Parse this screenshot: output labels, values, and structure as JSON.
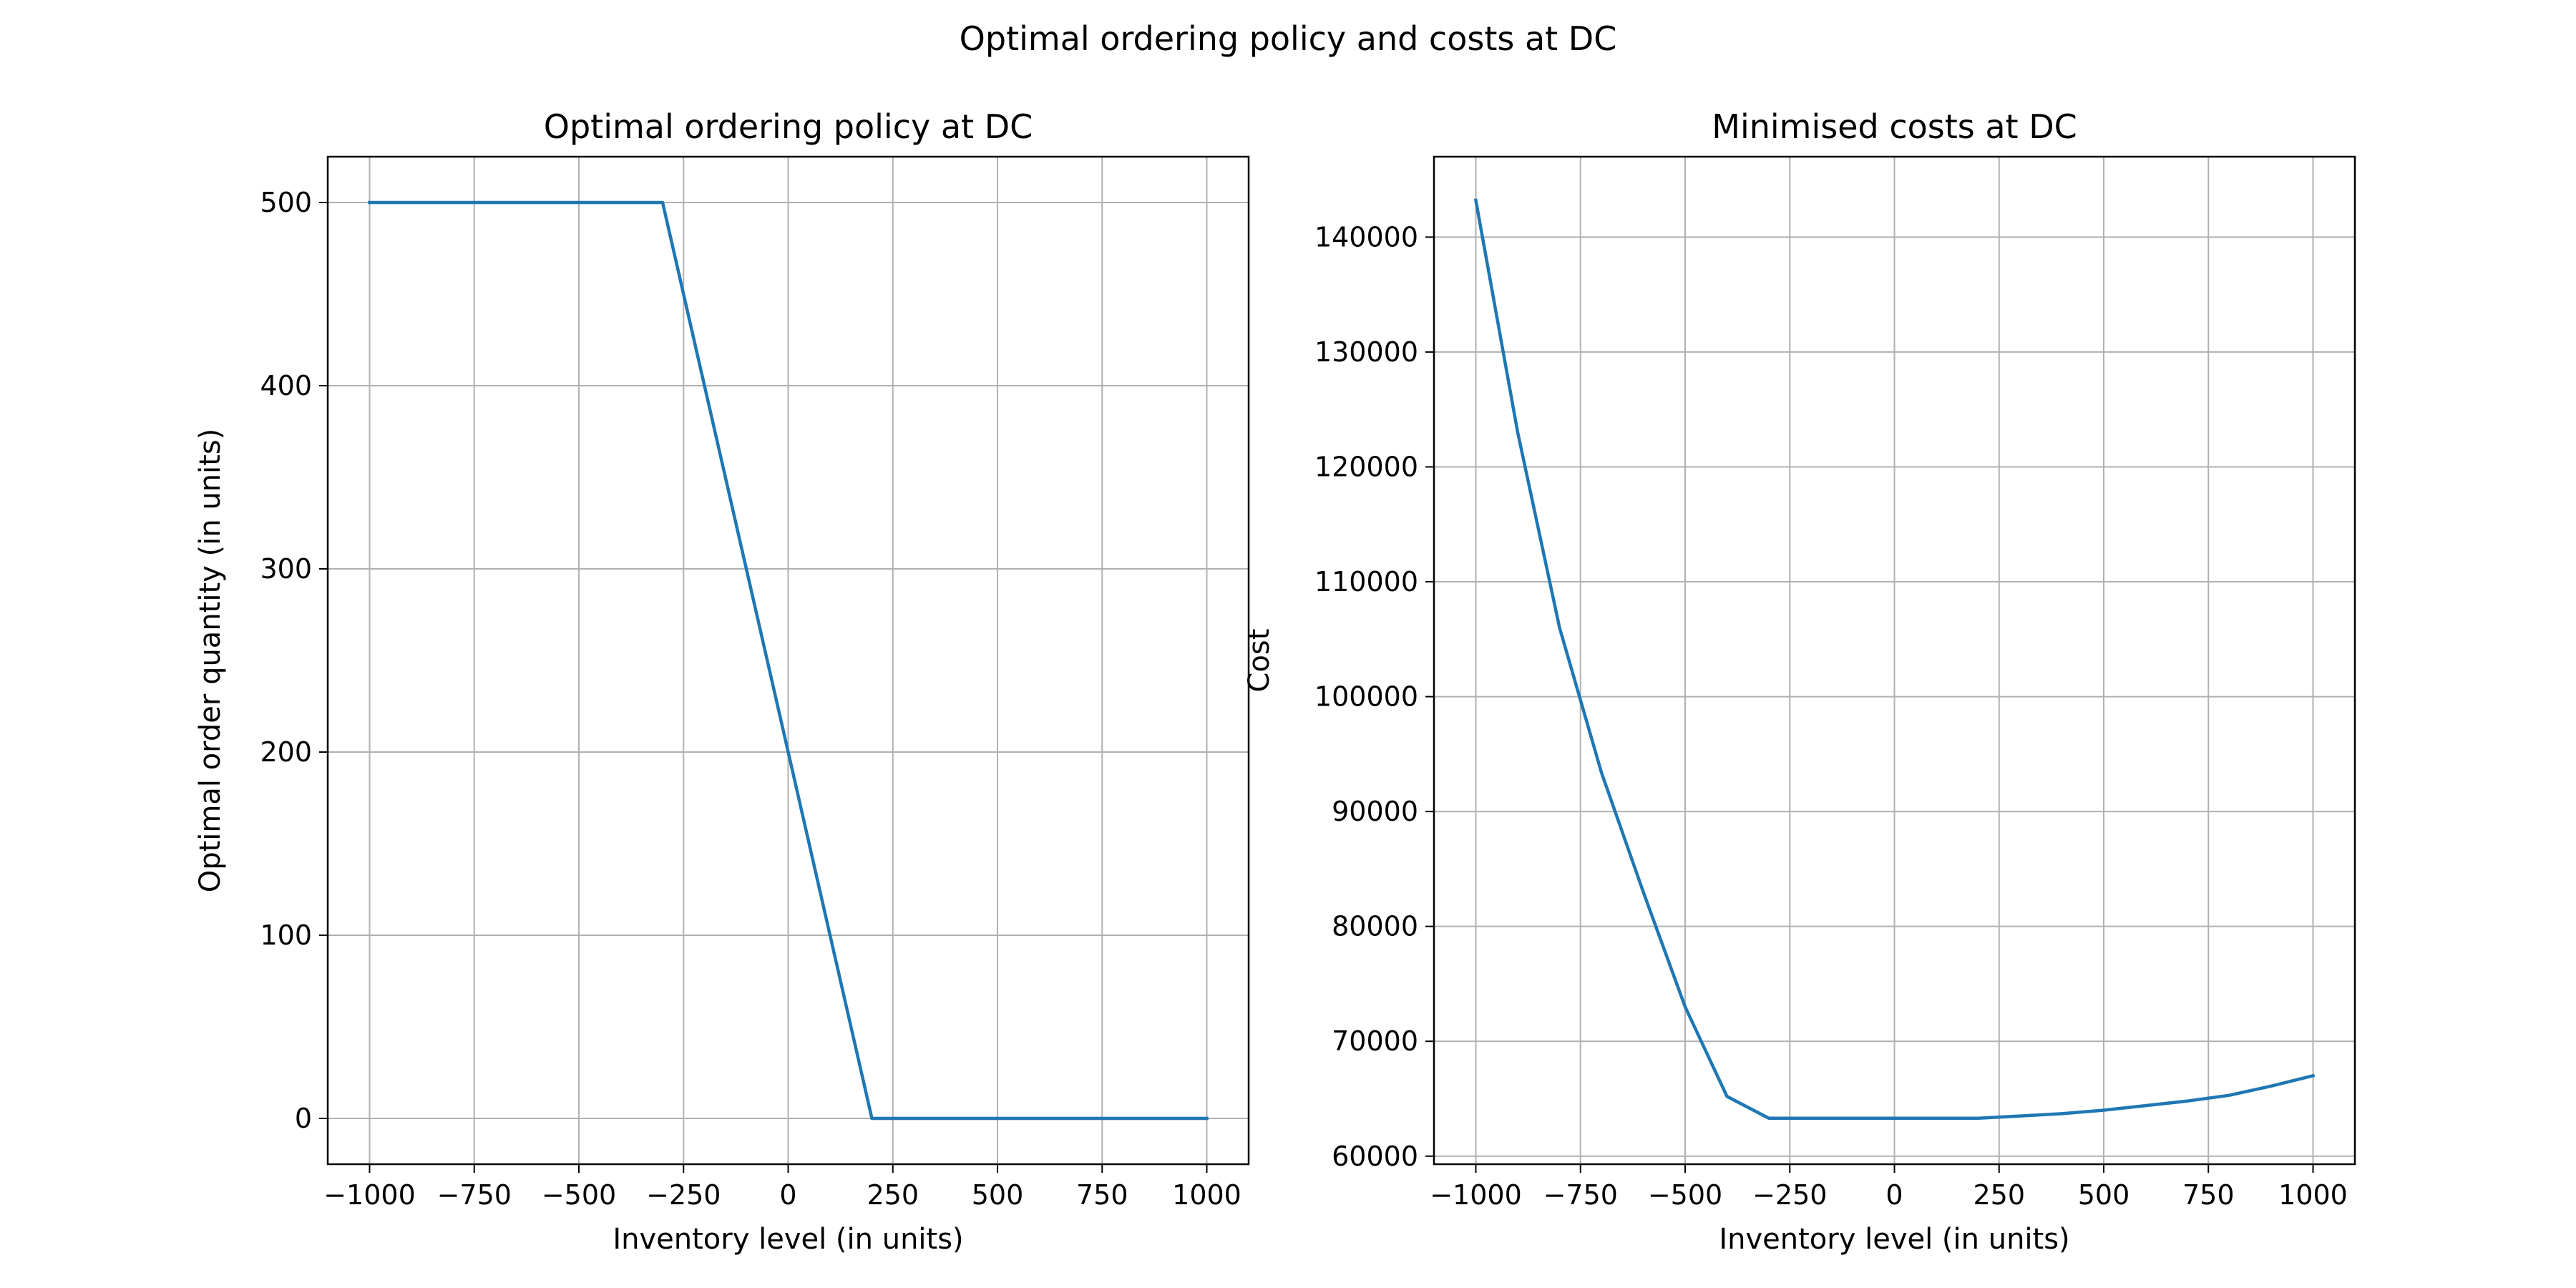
{
  "figure": {
    "suptitle": "Optimal ordering policy and costs at DC"
  },
  "chart_data": [
    {
      "type": "line",
      "title": "Optimal ordering policy at DC",
      "xlabel": "Inventory level (in units)",
      "ylabel": "Optimal order quantity (in units)",
      "xlim": [
        -1100,
        1100
      ],
      "ylim": [
        -25,
        525
      ],
      "xticks": [
        -1000,
        -750,
        -500,
        -250,
        0,
        250,
        500,
        750,
        1000
      ],
      "xtick_labels": [
        "−1000",
        "−750",
        "−500",
        "−250",
        "0",
        "250",
        "500",
        "750",
        "1000"
      ],
      "yticks": [
        0,
        100,
        200,
        300,
        400,
        500
      ],
      "ytick_labels": [
        "0",
        "100",
        "200",
        "300",
        "400",
        "500"
      ],
      "grid": true,
      "series": [
        {
          "name": "Optimal order quantity",
          "color": "#1f77b4",
          "x": [
            -1000,
            -900,
            -800,
            -700,
            -600,
            -500,
            -400,
            -300,
            -200,
            -100,
            0,
            100,
            200,
            300,
            400,
            500,
            600,
            700,
            800,
            900,
            1000
          ],
          "y": [
            500,
            500,
            500,
            500,
            500,
            500,
            500,
            500,
            400,
            300,
            200,
            100,
            0,
            0,
            0,
            0,
            0,
            0,
            0,
            0,
            0
          ]
        }
      ]
    },
    {
      "type": "line",
      "title": "Minimised costs at DC",
      "xlabel": "Inventory level (in units)",
      "ylabel": "Cost",
      "xlim": [
        -1100,
        1100
      ],
      "ylim": [
        59300,
        147000
      ],
      "xticks": [
        -1000,
        -750,
        -500,
        -250,
        0,
        250,
        500,
        750,
        1000
      ],
      "xtick_labels": [
        "−1000",
        "−750",
        "−500",
        "−250",
        "0",
        "250",
        "500",
        "750",
        "1000"
      ],
      "yticks": [
        60000,
        70000,
        80000,
        90000,
        100000,
        110000,
        120000,
        130000,
        140000
      ],
      "ytick_labels": [
        "60000",
        "70000",
        "80000",
        "90000",
        "100000",
        "110000",
        "120000",
        "130000",
        "140000"
      ],
      "grid": true,
      "series": [
        {
          "name": "Minimised cost",
          "color": "#1f77b4",
          "x": [
            -1000,
            -900,
            -800,
            -700,
            -600,
            -500,
            -400,
            -300,
            -200,
            -100,
            0,
            100,
            200,
            300,
            400,
            500,
            600,
            700,
            800,
            900,
            1000
          ],
          "y": [
            143200,
            123000,
            106000,
            93400,
            83000,
            73000,
            65200,
            63300,
            63300,
            63300,
            63300,
            63300,
            63300,
            63500,
            63700,
            64000,
            64400,
            64800,
            65300,
            66100,
            67000
          ]
        }
      ]
    }
  ]
}
